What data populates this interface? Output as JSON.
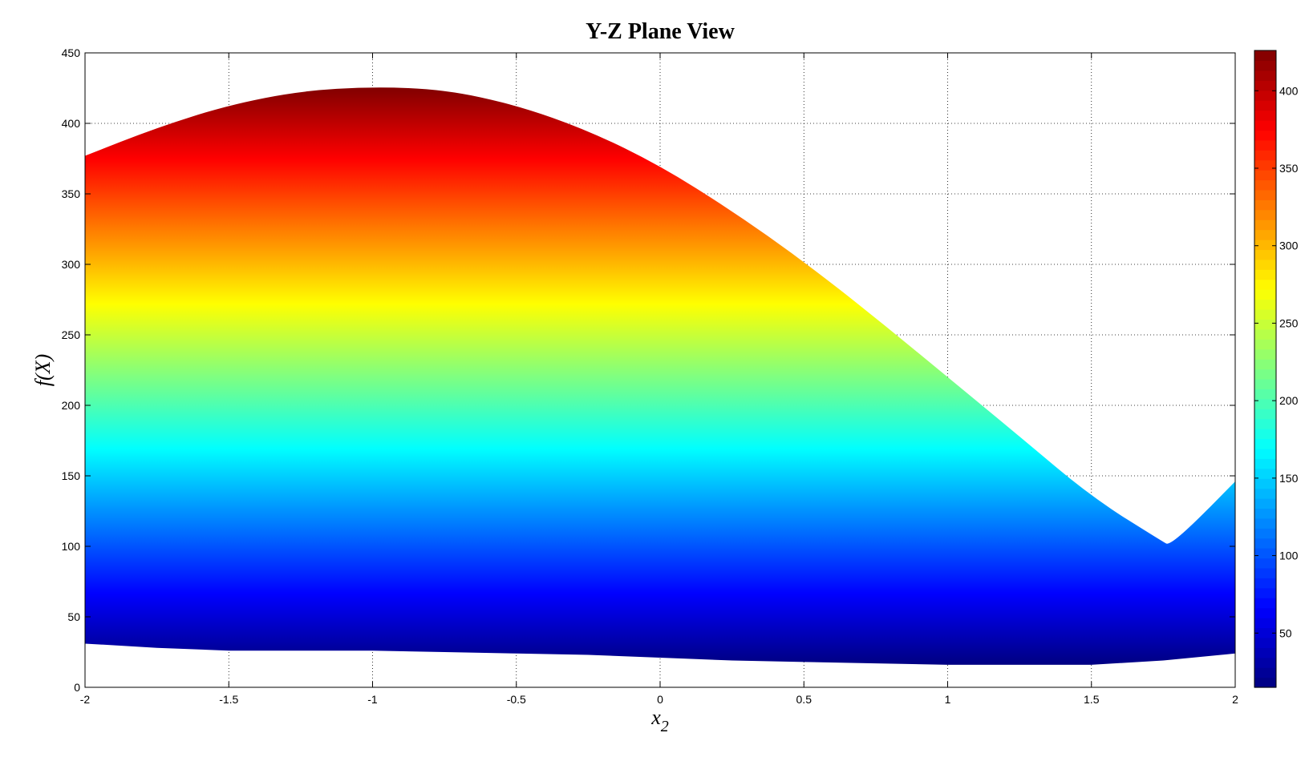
{
  "chart_data": {
    "type": "area",
    "title": "Y-Z Plane View",
    "xlabel": "x",
    "xlabel_subscript": "2",
    "ylabel": "f(X)",
    "xlim": [
      -2,
      2
    ],
    "ylim": [
      0,
      450
    ],
    "xticks": [
      "-2",
      "-1.5",
      "-1",
      "-0.5",
      "0",
      "0.5",
      "1",
      "1.5",
      "2"
    ],
    "yticks": [
      "0",
      "50",
      "100",
      "150",
      "200",
      "250",
      "300",
      "350",
      "400",
      "450"
    ],
    "grid": true,
    "colorbar": {
      "colormap": "jet",
      "range": [
        15,
        426
      ],
      "ticks": [
        "50",
        "100",
        "150",
        "200",
        "250",
        "300",
        "350",
        "400"
      ]
    },
    "upper_envelope": {
      "x": [
        -2.0,
        -1.75,
        -1.5,
        -1.25,
        -1.0,
        -0.75,
        -0.5,
        -0.25,
        0.0,
        0.25,
        0.5,
        0.75,
        1.0,
        1.25,
        1.5,
        1.75,
        1.77,
        1.85,
        2.0
      ],
      "y": [
        377,
        397,
        413,
        423,
        426,
        424,
        413,
        395,
        370,
        338,
        302,
        262,
        220,
        178,
        135,
        103,
        101,
        115,
        146
      ]
    },
    "lower_envelope": {
      "x": [
        -2.0,
        -1.75,
        -1.5,
        -1.25,
        -1.0,
        -0.75,
        -0.5,
        -0.25,
        0.0,
        0.25,
        0.5,
        0.75,
        1.0,
        1.25,
        1.5,
        1.75,
        2.0
      ],
      "y": [
        31,
        28,
        26,
        26,
        26,
        25,
        24,
        23,
        21,
        19,
        18,
        17,
        16,
        16,
        16,
        19,
        24
      ]
    }
  }
}
